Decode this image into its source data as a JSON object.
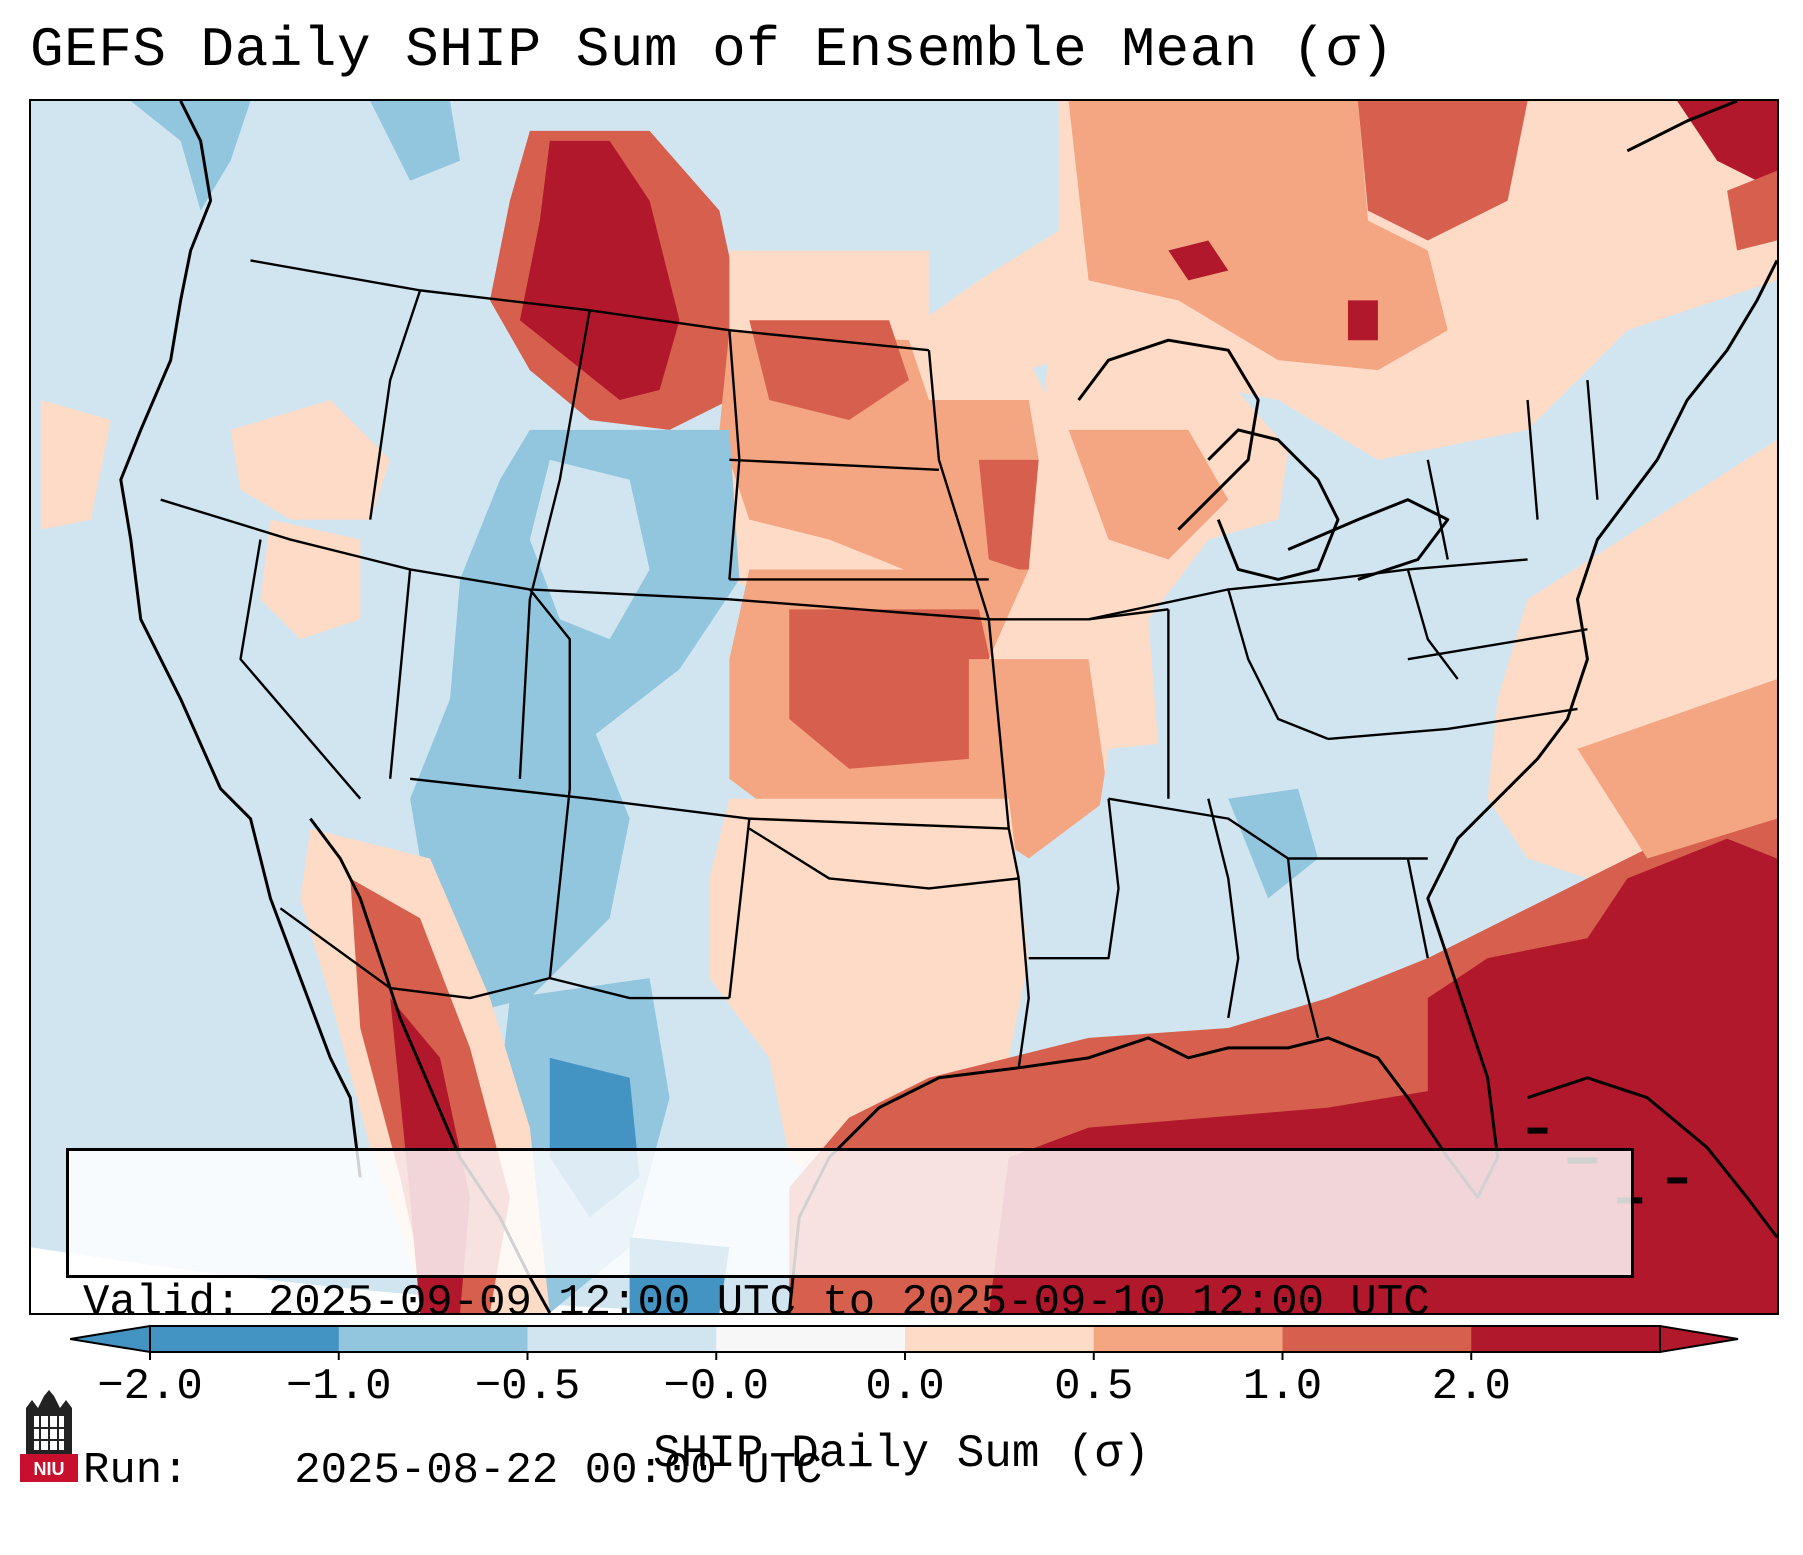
{
  "title": "GEFS Daily SHIP Sum of Ensemble Mean (σ)",
  "info": {
    "valid_label": "Valid:",
    "valid_value": "2025-09-09 12:00 UTC to 2025-09-10 12:00 UTC",
    "run_label": "Run:",
    "run_value": "2025-08-22 00:00 UTC"
  },
  "colorbar": {
    "label": "SHIP Daily Sum (σ)",
    "ticks": [
      "−2.0",
      "−1.0",
      "−0.5",
      "−0.0",
      "0.0",
      "0.5",
      "1.0",
      "2.0"
    ],
    "colors": [
      "#4393c3",
      "#92c5de",
      "#d1e5f0",
      "#f7f7f7",
      "#fddbc7",
      "#f4a582",
      "#d6604d",
      "#b2182b"
    ],
    "under_color": "#2166ac",
    "over_color": "#67001f"
  },
  "logo": {
    "text": "NIU"
  },
  "icons": {
    "logo": "niu-castle-logo-icon"
  }
}
